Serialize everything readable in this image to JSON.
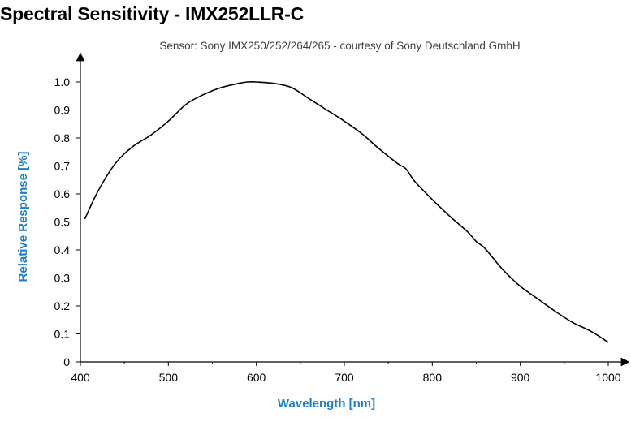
{
  "header": {
    "title": "Spectral Sensitivity - IMX252LLR-C",
    "subtitle": "Sensor: Sony IMX250/252/264/265 - courtesy of Sony Deutschland GmbH"
  },
  "colors": {
    "axis_title": "#1f7fc4",
    "curve": "#000000",
    "axis": "#000000"
  },
  "chart_data": {
    "type": "line",
    "title": "Spectral Sensitivity - IMX252LLR-C",
    "subtitle": "Sensor: Sony IMX250/252/264/265 - courtesy of Sony Deutschland GmbH",
    "xlabel": "Wavelength [nm]",
    "ylabel": "Relative Response [%]",
    "xlim": [
      400,
      1000
    ],
    "ylim": [
      0,
      1.0
    ],
    "x_ticks": [
      400,
      500,
      600,
      700,
      800,
      900,
      1000
    ],
    "x_tick_labels": [
      "400",
      "500",
      "600",
      "700",
      "800",
      "900",
      "1000"
    ],
    "y_ticks": [
      0,
      0.1,
      0.2,
      0.3,
      0.4,
      0.5,
      0.6,
      0.7,
      0.8,
      0.9,
      1.0
    ],
    "y_tick_labels": [
      "0",
      "0.1",
      "0.2",
      "0.3",
      "0.4",
      "0.5",
      "0.6",
      "0.7",
      "0.8",
      "0.9",
      "1.0"
    ],
    "grid": false,
    "series": [
      {
        "x": [
          405,
          420,
          440,
          460,
          480,
          500,
          520,
          540,
          560,
          580,
          590,
          600,
          620,
          640,
          660,
          680,
          700,
          720,
          740,
          760,
          770,
          780,
          800,
          820,
          840,
          850,
          860,
          880,
          900,
          920,
          940,
          960,
          980,
          1000
        ],
        "values": [
          0.51,
          0.61,
          0.71,
          0.77,
          0.81,
          0.86,
          0.92,
          0.955,
          0.98,
          0.995,
          1.0,
          1.0,
          0.995,
          0.98,
          0.94,
          0.9,
          0.86,
          0.815,
          0.76,
          0.71,
          0.69,
          0.645,
          0.58,
          0.52,
          0.465,
          0.43,
          0.405,
          0.33,
          0.27,
          0.225,
          0.18,
          0.14,
          0.11,
          0.07
        ]
      }
    ]
  }
}
